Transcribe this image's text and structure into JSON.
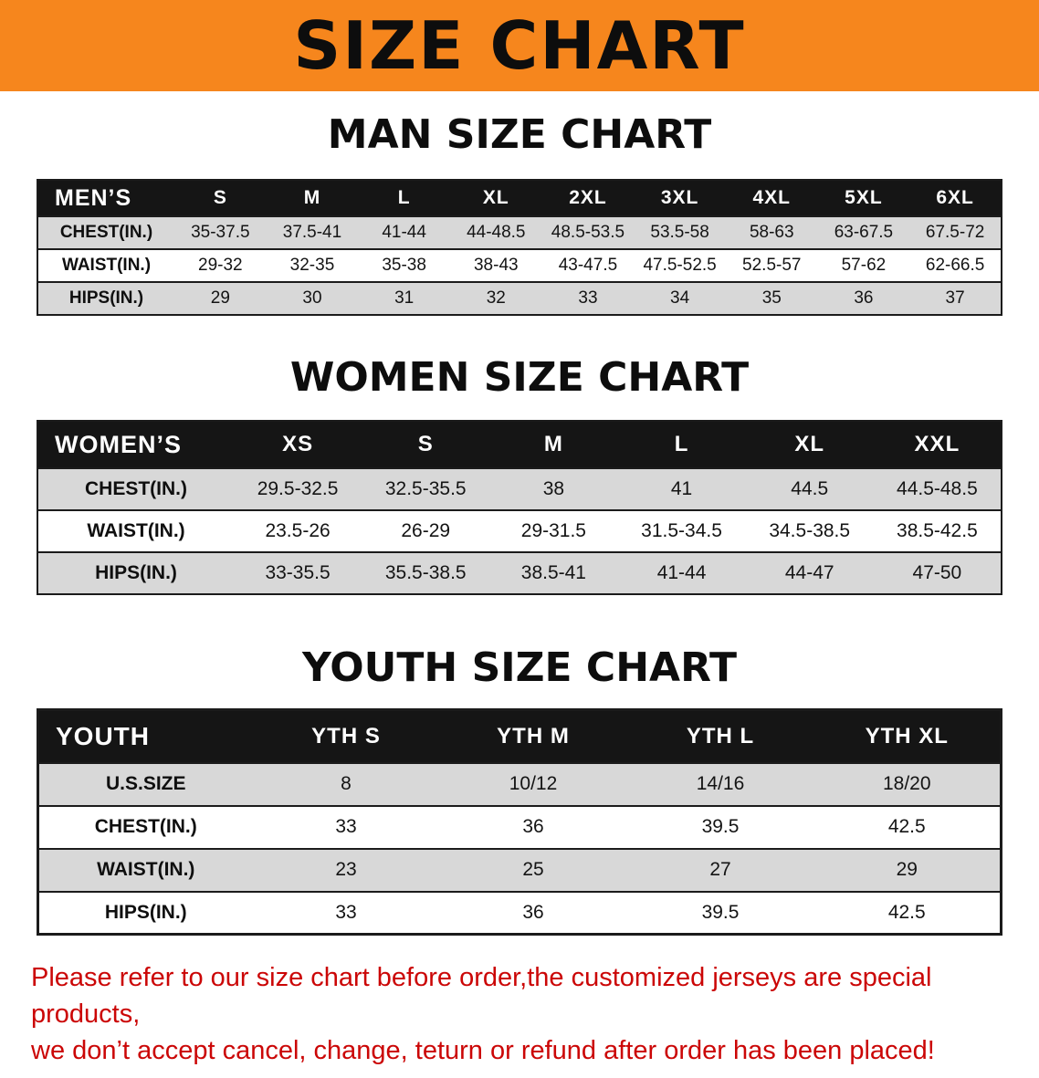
{
  "banner": {
    "title": "SIZE CHART"
  },
  "colors": {
    "banner_background": "#f6861d",
    "table_header_background": "#151515",
    "row_stripe_gray": "#d8d8d8",
    "disclaimer_red": "#cb0606"
  },
  "sections": {
    "men": {
      "title": "MAN SIZE CHART",
      "table": {
        "header": [
          "MEN’S",
          "S",
          "M",
          "L",
          "XL",
          "2XL",
          "3XL",
          "4XL",
          "5XL",
          "6XL"
        ],
        "rows": [
          {
            "label": "CHEST(IN.)",
            "cells": [
              "35-37.5",
              "37.5-41",
              "41-44",
              "44-48.5",
              "48.5-53.5",
              "53.5-58",
              "58-63",
              "63-67.5",
              "67.5-72"
            ]
          },
          {
            "label": "WAIST(IN.)",
            "cells": [
              "29-32",
              "32-35",
              "35-38",
              "38-43",
              "43-47.5",
              "47.5-52.5",
              "52.5-57",
              "57-62",
              "62-66.5"
            ]
          },
          {
            "label": "HIPS(IN.)",
            "cells": [
              "29",
              "30",
              "31",
              "32",
              "33",
              "34",
              "35",
              "36",
              "37"
            ]
          }
        ]
      }
    },
    "women": {
      "title": "WOMEN SIZE CHART",
      "table": {
        "header": [
          "WOMEN’S",
          "XS",
          "S",
          "M",
          "L",
          "XL",
          "XXL"
        ],
        "rows": [
          {
            "label": "CHEST(IN.)",
            "cells": [
              "29.5-32.5",
              "32.5-35.5",
              "38",
              "41",
              "44.5",
              "44.5-48.5"
            ]
          },
          {
            "label": "WAIST(IN.)",
            "cells": [
              "23.5-26",
              "26-29",
              "29-31.5",
              "31.5-34.5",
              "34.5-38.5",
              "38.5-42.5"
            ]
          },
          {
            "label": "HIPS(IN.)",
            "cells": [
              "33-35.5",
              "35.5-38.5",
              "38.5-41",
              "41-44",
              "44-47",
              "47-50"
            ]
          }
        ]
      }
    },
    "youth": {
      "title": "YOUTH SIZE CHART",
      "table": {
        "header": [
          "YOUTH",
          "YTH S",
          "YTH M",
          "YTH L",
          "YTH XL"
        ],
        "rows": [
          {
            "label": "U.S.SIZE",
            "cells": [
              "8",
              "10/12",
              "14/16",
              "18/20"
            ]
          },
          {
            "label": "CHEST(IN.)",
            "cells": [
              "33",
              "36",
              "39.5",
              "42.5"
            ]
          },
          {
            "label": "WAIST(IN.)",
            "cells": [
              "23",
              "25",
              "27",
              "29"
            ]
          },
          {
            "label": "HIPS(IN.)",
            "cells": [
              "33",
              "36",
              "39.5",
              "42.5"
            ]
          }
        ]
      }
    }
  },
  "disclaimer": {
    "line1": "Please refer to our size chart before order,the customized jerseys are special products,",
    "line2": "we don’t accept cancel, change, teturn or refund after order has been placed!"
  }
}
